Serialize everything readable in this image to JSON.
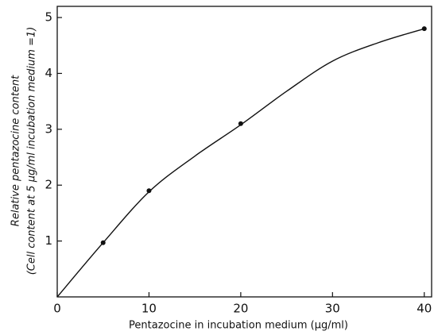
{
  "chart_data": {
    "type": "scatter",
    "x_label": "Pentazocine in incubation medium (μg/ml)",
    "y_label": [
      "Relative pentazocine content",
      "(Cell content at 5 μg/ml incubation medium =1)"
    ],
    "points": {
      "x": [
        5,
        10,
        20,
        40
      ],
      "y": [
        0.97,
        1.9,
        3.1,
        4.8
      ]
    },
    "curve": {
      "x": [
        0,
        5,
        10,
        15,
        20,
        25,
        30,
        35,
        40
      ],
      "y": [
        0,
        0.97,
        1.88,
        2.52,
        3.08,
        3.68,
        4.22,
        4.55,
        4.8
      ]
    },
    "color": "#111111",
    "xlim": [
      0,
      40.8
    ],
    "xticks": [
      0,
      10,
      20,
      30,
      40
    ],
    "ylim": [
      0,
      5.2
    ],
    "yticks": [
      1,
      2,
      3,
      4,
      5
    ]
  }
}
